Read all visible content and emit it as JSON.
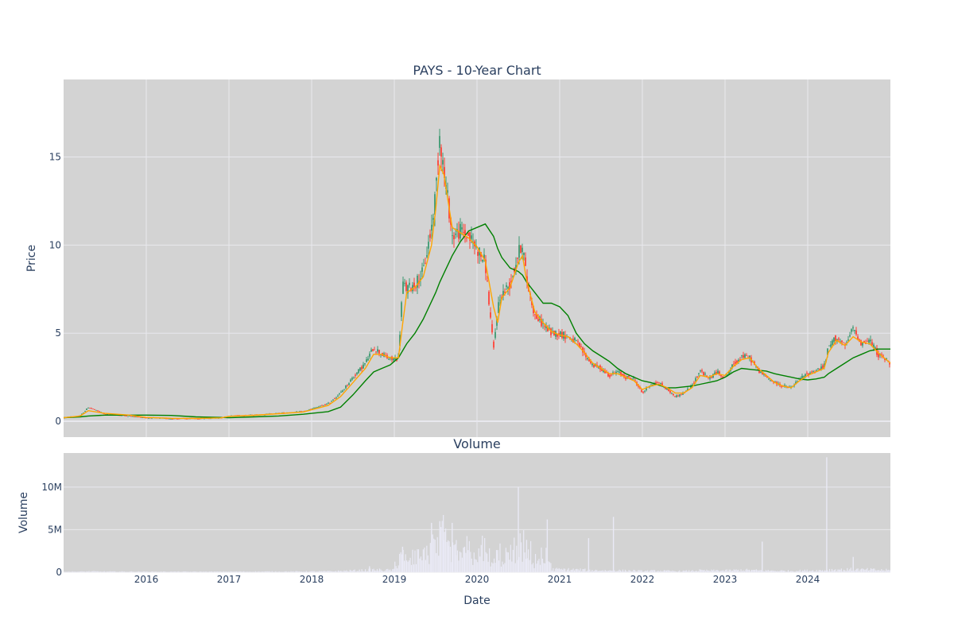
{
  "chart_data": [
    {
      "type": "candlestick",
      "title": "PAYS - 10-Year Chart",
      "ylabel": "Price",
      "xlabel": "",
      "ylim": [
        -0.9,
        19.4
      ],
      "xlim": [
        2015.0,
        2025.0
      ],
      "yticks": [
        0,
        5,
        10,
        15
      ],
      "ytick_labels": [
        "0",
        "5",
        "10",
        "15"
      ],
      "grid": true,
      "colors": {
        "plot_bg": "#d3d3d3",
        "grid": "#e8e8ee",
        "up": "#3d9970",
        "down": "#ff4136",
        "ma_short": "#ffa500",
        "ma_long": "#008000"
      },
      "price_x": [
        2015.0,
        2015.2,
        2015.3,
        2015.5,
        2015.8,
        2016.0,
        2016.3,
        2016.6,
        2016.9,
        2017.0,
        2017.3,
        2017.6,
        2017.9,
        2018.0,
        2018.2,
        2018.35,
        2018.5,
        2018.65,
        2018.75,
        2018.85,
        2018.95,
        2019.05,
        2019.1,
        2019.15,
        2019.25,
        2019.35,
        2019.45,
        2019.5,
        2019.55,
        2019.6,
        2019.65,
        2019.7,
        2019.8,
        2019.9,
        2020.0,
        2020.1,
        2020.2,
        2020.25,
        2020.3,
        2020.4,
        2020.5,
        2020.55,
        2020.6,
        2020.7,
        2020.8,
        2020.9,
        2021.0,
        2021.1,
        2021.2,
        2021.3,
        2021.4,
        2021.5,
        2021.6,
        2021.7,
        2021.8,
        2021.9,
        2022.0,
        2022.1,
        2022.2,
        2022.3,
        2022.4,
        2022.5,
        2022.6,
        2022.7,
        2022.8,
        2022.9,
        2023.0,
        2023.1,
        2023.2,
        2023.3,
        2023.4,
        2023.5,
        2023.6,
        2023.7,
        2023.8,
        2023.9,
        2024.0,
        2024.1,
        2024.2,
        2024.25,
        2024.35,
        2024.45,
        2024.55,
        2024.65,
        2024.75,
        2024.85,
        2024.95,
        2025.0
      ],
      "price_y": [
        0.2,
        0.3,
        0.8,
        0.4,
        0.3,
        0.2,
        0.15,
        0.15,
        0.2,
        0.3,
        0.35,
        0.45,
        0.55,
        0.7,
        1.0,
        1.6,
        2.5,
        3.3,
        4.2,
        3.8,
        3.5,
        3.6,
        7.8,
        7.5,
        7.8,
        8.5,
        11.0,
        13.0,
        16.5,
        14.0,
        12.5,
        10.5,
        10.8,
        10.5,
        9.8,
        9.0,
        4.0,
        6.5,
        7.2,
        7.8,
        9.5,
        10.2,
        8.0,
        6.0,
        5.5,
        5.0,
        5.0,
        4.8,
        4.5,
        3.8,
        3.2,
        3.0,
        2.6,
        2.8,
        2.5,
        2.4,
        1.6,
        2.1,
        2.2,
        1.8,
        1.4,
        1.6,
        2.0,
        2.9,
        2.4,
        2.8,
        2.5,
        3.2,
        3.7,
        3.6,
        2.9,
        2.5,
        2.2,
        2.0,
        1.9,
        2.4,
        2.7,
        2.9,
        3.1,
        4.2,
        4.8,
        4.2,
        5.3,
        4.4,
        4.6,
        3.8,
        3.5,
        3.2
      ],
      "ma_short_y": [
        0.2,
        0.3,
        0.6,
        0.45,
        0.35,
        0.22,
        0.17,
        0.16,
        0.19,
        0.28,
        0.34,
        0.43,
        0.53,
        0.65,
        0.9,
        1.4,
        2.2,
        3.0,
        3.8,
        3.8,
        3.6,
        3.6,
        5.5,
        7.3,
        7.6,
        8.2,
        10.0,
        12.0,
        14.5,
        14.0,
        12.5,
        11.0,
        10.7,
        10.4,
        9.9,
        9.1,
        6.5,
        5.6,
        7.0,
        7.6,
        9.0,
        9.4,
        8.0,
        6.2,
        5.6,
        5.1,
        4.9,
        4.8,
        4.4,
        3.9,
        3.3,
        3.0,
        2.7,
        2.7,
        2.5,
        2.3,
        1.8,
        2.0,
        2.1,
        1.9,
        1.6,
        1.6,
        1.9,
        2.6,
        2.5,
        2.7,
        2.6,
        3.1,
        3.5,
        3.6,
        3.0,
        2.6,
        2.2,
        2.0,
        1.9,
        2.3,
        2.6,
        2.8,
        3.0,
        3.9,
        4.6,
        4.3,
        4.8,
        4.5,
        4.4,
        3.9,
        3.5,
        3.3
      ],
      "ma_long_y": [
        0.2,
        0.25,
        0.3,
        0.35,
        0.35,
        0.35,
        0.33,
        0.25,
        0.22,
        0.2,
        0.25,
        0.3,
        0.4,
        0.45,
        0.55,
        0.8,
        1.5,
        2.3,
        2.8,
        3.0,
        3.2,
        3.6,
        4.0,
        4.4,
        5.0,
        5.8,
        6.8,
        7.3,
        7.9,
        8.4,
        8.9,
        9.4,
        10.2,
        10.8,
        11.0,
        11.2,
        10.5,
        9.8,
        9.3,
        8.7,
        8.5,
        8.3,
        7.9,
        7.3,
        6.7,
        6.7,
        6.5,
        6.0,
        5.0,
        4.4,
        4.0,
        3.7,
        3.4,
        3.0,
        2.7,
        2.5,
        2.3,
        2.2,
        2.05,
        1.9,
        1.9,
        1.95,
        2.0,
        2.1,
        2.2,
        2.3,
        2.5,
        2.8,
        3.0,
        2.95,
        2.9,
        2.85,
        2.7,
        2.6,
        2.5,
        2.4,
        2.35,
        2.4,
        2.5,
        2.7,
        3.0,
        3.3,
        3.6,
        3.8,
        4.0,
        4.1,
        4.1,
        4.1
      ]
    },
    {
      "type": "bar",
      "title": "Volume",
      "ylabel": "Volume",
      "xlabel": "Date",
      "ylim": [
        0,
        14000000
      ],
      "xlim": [
        2015.0,
        2025.0
      ],
      "yticks": [
        0,
        5000000,
        10000000
      ],
      "ytick_labels": [
        "0",
        "5M",
        "10M"
      ],
      "xticks": [
        2016,
        2017,
        2018,
        2019,
        2020,
        2021,
        2022,
        2023,
        2024
      ],
      "xtick_labels": [
        "2016",
        "2017",
        "2018",
        "2019",
        "2020",
        "2021",
        "2022",
        "2023",
        "2024"
      ],
      "colors": {
        "plot_bg": "#d3d3d3",
        "grid": "#e8e8ee",
        "bar": "#eaeaf6"
      },
      "spikes_x": [
        2018.7,
        2019.1,
        2019.45,
        2019.55,
        2019.6,
        2019.65,
        2019.7,
        2019.75,
        2019.85,
        2020.25,
        2020.5,
        2020.6,
        2020.85,
        2021.35,
        2021.65,
        2023.45,
        2024.23,
        2024.55
      ],
      "spikes_y": [
        700000,
        3000000,
        5800000,
        6000000,
        3800000,
        3100000,
        5800000,
        2000000,
        3000000,
        2600000,
        10000000,
        3800000,
        6200000,
        4000000,
        6500000,
        3600000,
        13500000,
        1800000
      ]
    }
  ]
}
